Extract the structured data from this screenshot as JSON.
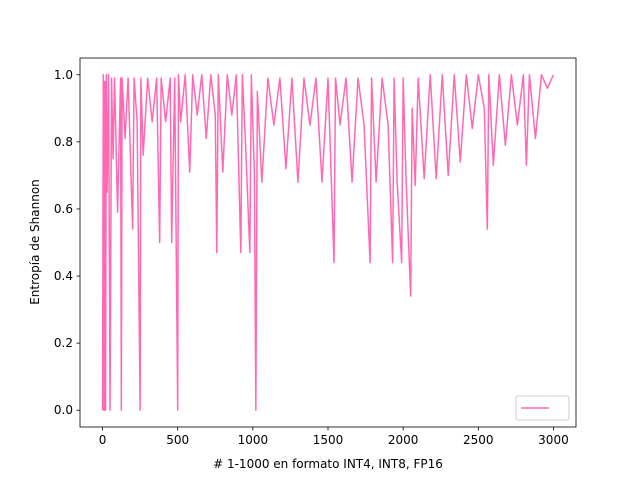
{
  "chart_data": {
    "type": "line",
    "xlabel": "# 1-1000 en formato INT4, INT8, FP16",
    "ylabel": "Entropía de Shannon",
    "x": [
      0,
      5,
      10,
      15,
      20,
      25,
      30,
      40,
      50,
      60,
      70,
      80,
      100,
      120,
      125,
      130,
      150,
      170,
      200,
      210,
      230,
      250,
      255,
      270,
      300,
      330,
      360,
      380,
      390,
      420,
      450,
      460,
      480,
      500,
      505,
      520,
      550,
      580,
      600,
      630,
      660,
      690,
      720,
      750,
      760,
      770,
      800,
      830,
      860,
      890,
      920,
      930,
      950,
      980,
      990,
      1010,
      1020,
      1030,
      1060,
      1100,
      1140,
      1180,
      1220,
      1260,
      1300,
      1340,
      1380,
      1420,
      1460,
      1500,
      1540,
      1550,
      1580,
      1620,
      1660,
      1700,
      1740,
      1780,
      1790,
      1820,
      1860,
      1900,
      1930,
      1940,
      1960,
      1990,
      2000,
      2020,
      2050,
      2060,
      2080,
      2100,
      2140,
      2180,
      2220,
      2260,
      2300,
      2340,
      2380,
      2420,
      2460,
      2500,
      2540,
      2560,
      2570,
      2600,
      2640,
      2680,
      2720,
      2760,
      2800,
      2820,
      2840,
      2880,
      2920,
      2960,
      3000
    ],
    "series": [
      {
        "color": "#ff69b4",
        "values": [
          0,
          1.0,
          0,
          0.98,
          0,
          1.0,
          0.65,
          1.0,
          0,
          0.99,
          0.75,
          0.99,
          0.59,
          0.99,
          0,
          0.99,
          0.81,
          0.99,
          0.54,
          0.99,
          0.86,
          0,
          0.99,
          0.76,
          0.99,
          0.86,
          0.99,
          0.5,
          0.99,
          0.86,
          0.99,
          0.5,
          0.99,
          0,
          1.0,
          0.86,
          1.0,
          0.71,
          1.0,
          0.88,
          1.0,
          0.81,
          1.0,
          0.88,
          0.47,
          1.0,
          0.71,
          1.0,
          0.88,
          1.0,
          0.47,
          1.0,
          0.81,
          0.47,
          1.0,
          0.71,
          0,
          0.95,
          0.68,
          0.99,
          0.85,
          0.99,
          0.72,
          0.99,
          0.68,
          0.99,
          0.85,
          0.99,
          0.68,
          0.99,
          0.44,
          0.99,
          0.85,
          0.99,
          0.68,
          0.99,
          0.85,
          0.44,
          0.99,
          0.68,
          0.99,
          0.85,
          0.44,
          0.99,
          0.68,
          0.44,
          0.99,
          0.68,
          0.34,
          0.9,
          0.67,
          0.99,
          0.69,
          1.0,
          0.69,
          1.0,
          0.7,
          1.0,
          0.74,
          1.0,
          0.84,
          1.0,
          0.9,
          0.54,
          1.0,
          0.73,
          1.0,
          0.79,
          1.0,
          0.85,
          1.0,
          0.73,
          1.0,
          0.81,
          1.0,
          0.96,
          1.0
        ]
      }
    ],
    "xlim": [
      -150,
      3150
    ],
    "ylim": [
      -0.05,
      1.05
    ],
    "xticks": [
      0,
      500,
      1000,
      1500,
      2000,
      2500,
      3000
    ],
    "yticks": [
      {
        "value": 0,
        "label": "0.0"
      },
      0.2,
      0.4,
      0.6,
      0.8,
      {
        "value": 1,
        "label": "1.0"
      }
    ],
    "legend": "lower right"
  }
}
